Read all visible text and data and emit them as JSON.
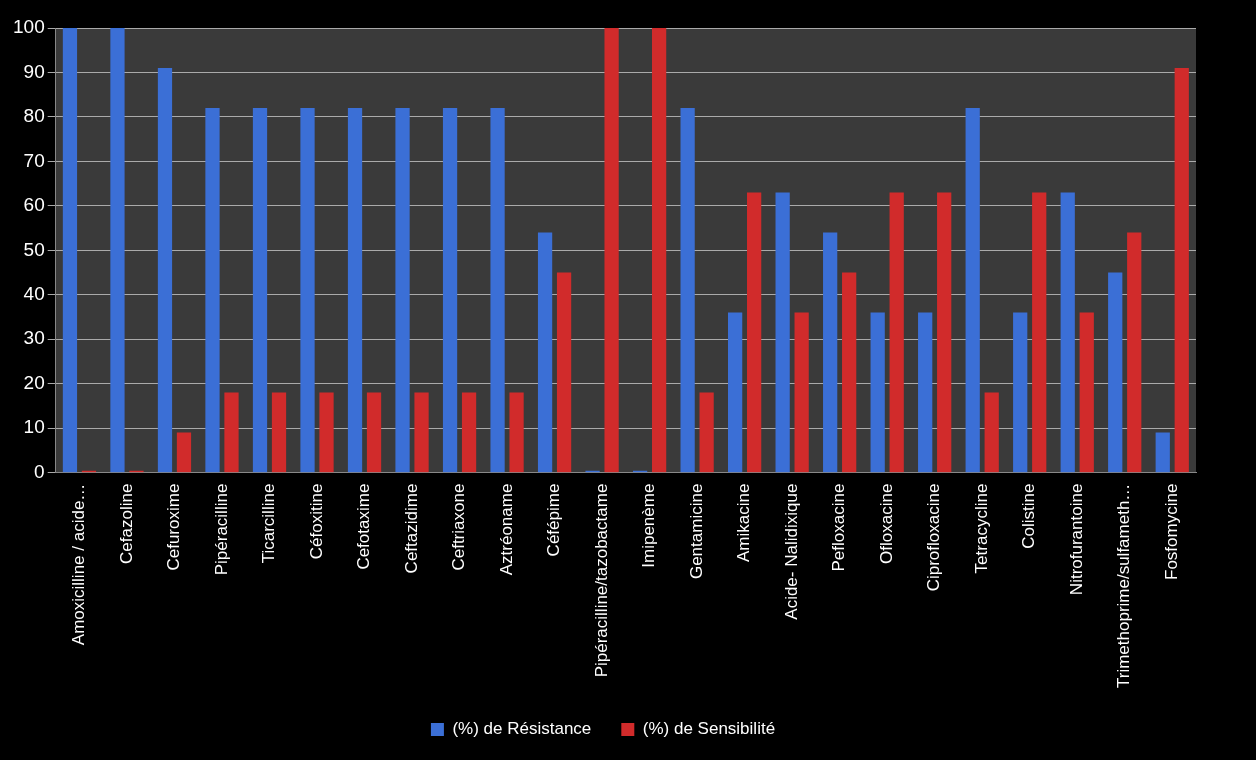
{
  "chart_data": {
    "type": "bar",
    "categories": [
      "Amoxicilline / acide…",
      "Cefazoline",
      "Cefuroxime",
      "Pipéracilline",
      "Ticarcilline",
      "Céfoxitine",
      "Cefotaxime",
      "Ceftazidime",
      "Ceftriaxone",
      "Aztréoname",
      "Céfépime",
      "Pipéracilline/tazobactame",
      "Imipenème",
      "Gentamicine",
      "Amikacine",
      "Acide- Nalidixique",
      "Pefloxacine",
      "Ofloxacine",
      "Ciprofloxacine",
      "Tetracycline",
      "Colistine",
      "Nitrofurantoine",
      "Trimethoprime/sulfameth…",
      "Fosfomycine"
    ],
    "series": [
      {
        "name": "(%) de Résistance",
        "color": "#3b6fd6",
        "values": [
          100,
          100,
          91,
          82,
          82,
          82,
          82,
          82,
          82,
          82,
          54,
          0,
          0,
          82,
          36,
          63,
          54,
          36,
          36,
          82,
          36,
          63,
          45,
          9
        ]
      },
      {
        "name": "(%) de Sensibilité",
        "color": "#d12b2b",
        "values": [
          0,
          0,
          9,
          18,
          18,
          18,
          18,
          18,
          18,
          18,
          45,
          100,
          100,
          18,
          63,
          36,
          45,
          63,
          63,
          18,
          63,
          36,
          54,
          91
        ]
      }
    ],
    "ylim": [
      0,
      100
    ],
    "yticks": [
      0,
      10,
      20,
      30,
      40,
      50,
      60,
      70,
      80,
      90,
      100
    ],
    "grid": "y",
    "legend": "bottom"
  }
}
